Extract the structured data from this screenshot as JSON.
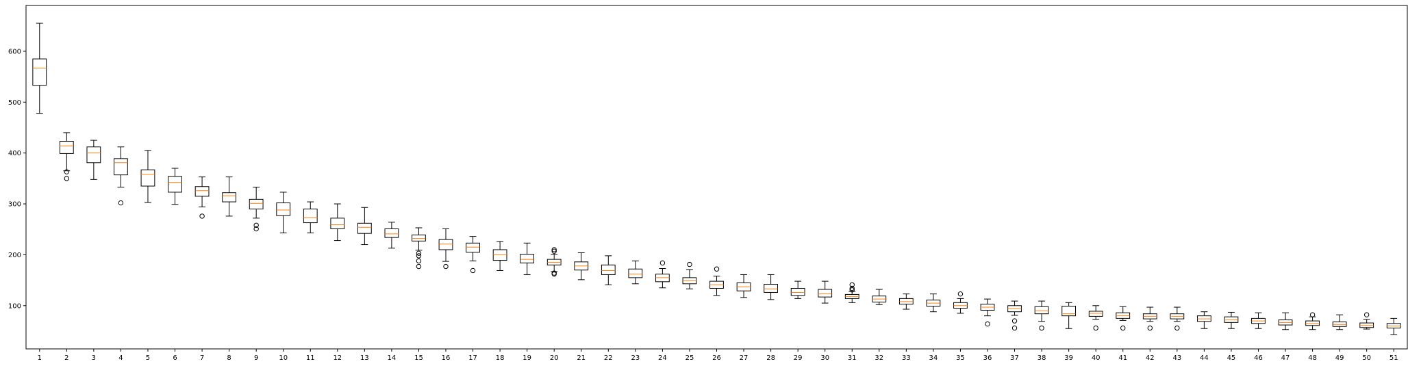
{
  "chart_data": {
    "type": "boxplot",
    "title": "",
    "xlabel": "",
    "ylabel": "",
    "categories": [
      "1",
      "2",
      "3",
      "4",
      "5",
      "6",
      "7",
      "8",
      "9",
      "10",
      "11",
      "12",
      "13",
      "14",
      "15",
      "16",
      "17",
      "18",
      "19",
      "20",
      "21",
      "22",
      "23",
      "24",
      "25",
      "26",
      "27",
      "28",
      "29",
      "30",
      "31",
      "32",
      "33",
      "34",
      "35",
      "36",
      "37",
      "38",
      "39",
      "40",
      "41",
      "42",
      "43",
      "44",
      "45",
      "46",
      "47",
      "48",
      "49",
      "50",
      "51"
    ],
    "y_ticks": [
      100,
      200,
      300,
      400,
      500,
      600
    ],
    "ylim": [
      15,
      690
    ],
    "grid": false,
    "legend": "none",
    "colors": {
      "box": "#000000",
      "median": "#ff7f0e",
      "flier": "#000000",
      "axes": "#000000"
    },
    "boxes": [
      {
        "whislo": 478,
        "q1": 533,
        "med": 567,
        "q3": 585,
        "whishi": 655,
        "fliers": []
      },
      {
        "whislo": 365,
        "q1": 399,
        "med": 414,
        "q3": 423,
        "whishi": 440,
        "fliers": [
          363,
          350
        ]
      },
      {
        "whislo": 348,
        "q1": 381,
        "med": 400,
        "q3": 412,
        "whishi": 425,
        "fliers": []
      },
      {
        "whislo": 333,
        "q1": 357,
        "med": 381,
        "q3": 389,
        "whishi": 412,
        "fliers": [
          302
        ]
      },
      {
        "whislo": 303,
        "q1": 335,
        "med": 358,
        "q3": 367,
        "whishi": 405,
        "fliers": []
      },
      {
        "whislo": 299,
        "q1": 323,
        "med": 342,
        "q3": 354,
        "whishi": 370,
        "fliers": []
      },
      {
        "whislo": 294,
        "q1": 315,
        "med": 326,
        "q3": 334,
        "whishi": 353,
        "fliers": [
          276
        ]
      },
      {
        "whislo": 276,
        "q1": 304,
        "med": 316,
        "q3": 322,
        "whishi": 353,
        "fliers": []
      },
      {
        "whislo": 272,
        "q1": 290,
        "med": 301,
        "q3": 309,
        "whishi": 333,
        "fliers": [
          258,
          251
        ]
      },
      {
        "whislo": 243,
        "q1": 277,
        "med": 288,
        "q3": 302,
        "whishi": 323,
        "fliers": []
      },
      {
        "whislo": 243,
        "q1": 263,
        "med": 273,
        "q3": 290,
        "whishi": 304,
        "fliers": []
      },
      {
        "whislo": 228,
        "q1": 251,
        "med": 259,
        "q3": 272,
        "whishi": 300,
        "fliers": []
      },
      {
        "whislo": 220,
        "q1": 242,
        "med": 254,
        "q3": 262,
        "whishi": 293,
        "fliers": []
      },
      {
        "whislo": 213,
        "q1": 234,
        "med": 241,
        "q3": 251,
        "whishi": 264,
        "fliers": []
      },
      {
        "whislo": 209,
        "q1": 227,
        "med": 232,
        "q3": 239,
        "whishi": 253,
        "fliers": [
          203,
          198,
          188,
          177
        ]
      },
      {
        "whislo": 187,
        "q1": 210,
        "med": 221,
        "q3": 230,
        "whishi": 251,
        "fliers": [
          177
        ]
      },
      {
        "whislo": 188,
        "q1": 205,
        "med": 215,
        "q3": 223,
        "whishi": 236,
        "fliers": [
          169
        ]
      },
      {
        "whislo": 169,
        "q1": 189,
        "med": 200,
        "q3": 210,
        "whishi": 226,
        "fliers": []
      },
      {
        "whislo": 161,
        "q1": 184,
        "med": 191,
        "q3": 201,
        "whishi": 223,
        "fliers": []
      },
      {
        "whislo": 167,
        "q1": 180,
        "med": 185,
        "q3": 191,
        "whishi": 201,
        "fliers": [
          207,
          210,
          164,
          162
        ]
      },
      {
        "whislo": 151,
        "q1": 170,
        "med": 178,
        "q3": 186,
        "whishi": 204,
        "fliers": []
      },
      {
        "whislo": 141,
        "q1": 161,
        "med": 169,
        "q3": 180,
        "whishi": 198,
        "fliers": []
      },
      {
        "whislo": 143,
        "q1": 155,
        "med": 162,
        "q3": 172,
        "whishi": 188,
        "fliers": []
      },
      {
        "whislo": 135,
        "q1": 147,
        "med": 155,
        "q3": 162,
        "whishi": 173,
        "fliers": [
          184
        ]
      },
      {
        "whislo": 133,
        "q1": 143,
        "med": 149,
        "q3": 155,
        "whishi": 171,
        "fliers": [
          181
        ]
      },
      {
        "whislo": 120,
        "q1": 134,
        "med": 141,
        "q3": 148,
        "whishi": 158,
        "fliers": [
          172
        ]
      },
      {
        "whislo": 116,
        "q1": 129,
        "med": 137,
        "q3": 145,
        "whishi": 161,
        "fliers": []
      },
      {
        "whislo": 112,
        "q1": 126,
        "med": 133,
        "q3": 142,
        "whishi": 161,
        "fliers": []
      },
      {
        "whislo": 114,
        "q1": 120,
        "med": 126,
        "q3": 134,
        "whishi": 148,
        "fliers": []
      },
      {
        "whislo": 105,
        "q1": 117,
        "med": 123,
        "q3": 132,
        "whishi": 148,
        "fliers": []
      },
      {
        "whislo": 106,
        "q1": 114,
        "med": 118,
        "q3": 122,
        "whishi": 128,
        "fliers": [
          134,
          141,
          131
        ]
      },
      {
        "whislo": 102,
        "q1": 107,
        "med": 113,
        "q3": 119,
        "whishi": 132,
        "fliers": []
      },
      {
        "whislo": 93,
        "q1": 103,
        "med": 108,
        "q3": 114,
        "whishi": 123,
        "fliers": []
      },
      {
        "whislo": 88,
        "q1": 99,
        "med": 105,
        "q3": 111,
        "whishi": 123,
        "fliers": []
      },
      {
        "whislo": 85,
        "q1": 95,
        "med": 100,
        "q3": 106,
        "whishi": 114,
        "fliers": [
          123
        ]
      },
      {
        "whislo": 80,
        "q1": 91,
        "med": 97,
        "q3": 103,
        "whishi": 113,
        "fliers": [
          64
        ]
      },
      {
        "whislo": 81,
        "q1": 88,
        "med": 94,
        "q3": 100,
        "whishi": 109,
        "fliers": [
          70,
          56
        ]
      },
      {
        "whislo": 69,
        "q1": 84,
        "med": 90,
        "q3": 98,
        "whishi": 109,
        "fliers": [
          56
        ]
      },
      {
        "whislo": 55,
        "q1": 80,
        "med": 84,
        "q3": 99,
        "whishi": 106,
        "fliers": []
      },
      {
        "whislo": 73,
        "q1": 79,
        "med": 85,
        "q3": 89,
        "whishi": 100,
        "fliers": [
          56
        ]
      },
      {
        "whislo": 71,
        "q1": 75,
        "med": 80,
        "q3": 86,
        "whishi": 98,
        "fliers": [
          56
        ]
      },
      {
        "whislo": 69,
        "q1": 74,
        "med": 79,
        "q3": 84,
        "whishi": 97,
        "fliers": [
          56
        ]
      },
      {
        "whislo": 69,
        "q1": 74,
        "med": 79,
        "q3": 84,
        "whishi": 97,
        "fliers": [
          56
        ]
      },
      {
        "whislo": 55,
        "q1": 69,
        "med": 74,
        "q3": 80,
        "whishi": 88,
        "fliers": []
      },
      {
        "whislo": 55,
        "q1": 67,
        "med": 72,
        "q3": 78,
        "whishi": 87,
        "fliers": []
      },
      {
        "whislo": 55,
        "q1": 65,
        "med": 70,
        "q3": 75,
        "whishi": 86,
        "fliers": []
      },
      {
        "whislo": 53,
        "q1": 62,
        "med": 67,
        "q3": 72,
        "whishi": 86,
        "fliers": []
      },
      {
        "whislo": 53,
        "q1": 61,
        "med": 65,
        "q3": 70,
        "whishi": 78,
        "fliers": [
          82
        ]
      },
      {
        "whislo": 53,
        "q1": 59,
        "med": 63,
        "q3": 68,
        "whishi": 82,
        "fliers": []
      },
      {
        "whislo": 54,
        "q1": 57,
        "med": 61,
        "q3": 66,
        "whishi": 73,
        "fliers": [
          82
        ]
      },
      {
        "whislo": 43,
        "q1": 56,
        "med": 60,
        "q3": 65,
        "whishi": 75,
        "fliers": []
      }
    ]
  }
}
